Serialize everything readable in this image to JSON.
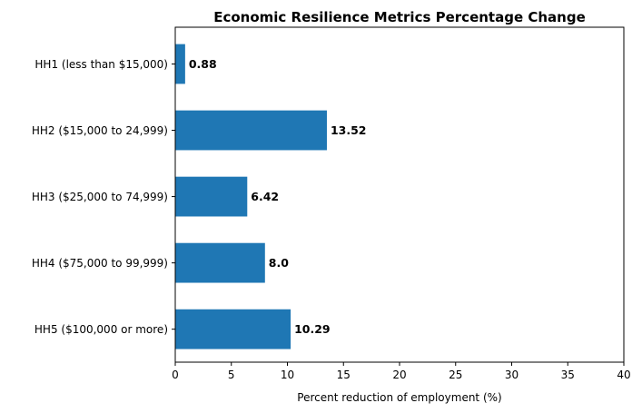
{
  "chart_data": {
    "type": "bar",
    "orientation": "horizontal",
    "title": "Economic Resilience Metrics Percentage Change",
    "xlabel": "Percent reduction of employment (%)",
    "ylabel": "",
    "categories": [
      "HH1 (less than $15,000)",
      "HH2 ($15,000 to 24,999)",
      "HH3 ($25,000 to 74,999)",
      "HH4 ($75,000 to 99,999)",
      "HH5 ($100,000 or more)"
    ],
    "values": [
      0.88,
      13.52,
      6.42,
      8.0,
      10.29
    ],
    "value_labels": [
      "0.88",
      "13.52",
      "6.42",
      "8.0",
      "10.29"
    ],
    "xlim": [
      0,
      40
    ],
    "xticks": [
      "0",
      "5",
      "10",
      "15",
      "20",
      "25",
      "30",
      "35",
      "40"
    ],
    "bar_color": "#1f77b4",
    "grid": false,
    "legend": false
  }
}
